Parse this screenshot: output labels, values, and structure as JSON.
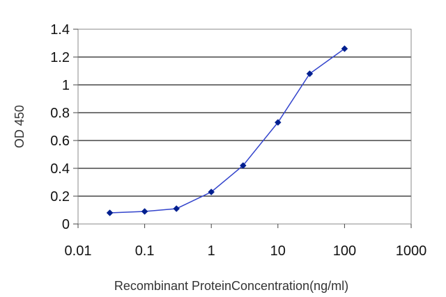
{
  "chart_data": {
    "type": "line",
    "title": "",
    "xlabel": "Recombinant ProteinConcentration(ng/ml)",
    "ylabel": "OD 450",
    "x_scale": "log",
    "xlim": [
      0.01,
      1000
    ],
    "ylim": [
      0,
      1.4
    ],
    "x_ticks": [
      0.01,
      0.1,
      1,
      10,
      100,
      1000
    ],
    "x_tick_labels": [
      "0.01",
      "0.1",
      "1",
      "10",
      "100",
      "1000"
    ],
    "y_ticks": [
      0,
      0.2,
      0.4,
      0.6,
      0.8,
      1.0,
      1.2,
      1.4
    ],
    "y_tick_labels": [
      "0",
      "0.2",
      "0.4",
      "0.6",
      "0.8",
      "1",
      "1.2",
      "1.4"
    ],
    "grid": "horizontal",
    "legend": "none",
    "series": [
      {
        "x": [
          0.03,
          0.1,
          0.3,
          1,
          3,
          10,
          30,
          100
        ],
        "y": [
          0.08,
          0.09,
          0.11,
          0.23,
          0.42,
          0.73,
          1.08,
          1.26
        ],
        "color": "#3344cc",
        "marker_color": "#001f8f"
      }
    ]
  }
}
